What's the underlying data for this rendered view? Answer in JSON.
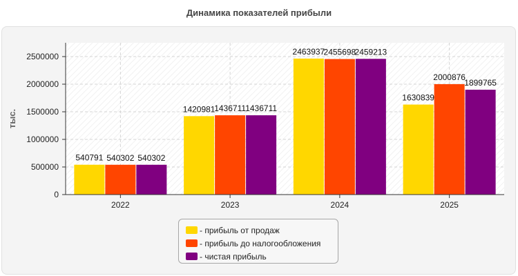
{
  "chart_data": {
    "type": "bar",
    "title": "Динамика показателей прибыли",
    "ylabel": "тыс.",
    "xlabel": "",
    "categories": [
      "2022",
      "2023",
      "2024",
      "2025"
    ],
    "ylim": [
      0,
      2750000
    ],
    "yticks": [
      0,
      500000,
      1000000,
      1500000,
      2000000,
      2500000
    ],
    "grid": true,
    "legend_position": "bottom-center",
    "series": [
      {
        "name": "- прибыль от продаж",
        "color": "#FFD700",
        "values": [
          540791,
          1420981,
          2463937,
          1630839
        ]
      },
      {
        "name": "- прибыль до налогообложения",
        "color": "#FF4500",
        "values": [
          540302,
          1436711,
          2455698,
          2000876
        ]
      },
      {
        "name": "- чистая прибыль",
        "color": "#800080",
        "values": [
          540302,
          1436711,
          2459213,
          1899765
        ]
      }
    ]
  }
}
